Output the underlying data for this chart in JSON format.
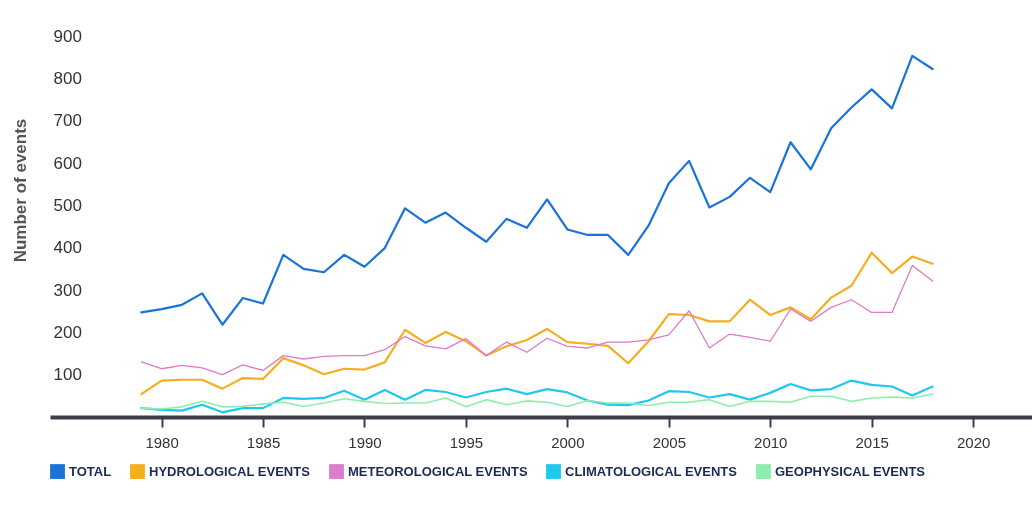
{
  "chart_data": {
    "type": "line",
    "ylabel": "Number of events",
    "x": [
      1979,
      1980,
      1981,
      1982,
      1983,
      1984,
      1985,
      1986,
      1987,
      1988,
      1989,
      1990,
      1991,
      1992,
      1993,
      1994,
      1995,
      1996,
      1997,
      1998,
      1999,
      2000,
      2001,
      2002,
      2003,
      2004,
      2005,
      2006,
      2007,
      2008,
      2009,
      2010,
      2011,
      2012,
      2013,
      2014,
      2015,
      2016,
      2017,
      2018
    ],
    "series": [
      {
        "name": "TOTAL",
        "color": "#1a73d9",
        "values": [
          247,
          255,
          265,
          292,
          218,
          281,
          268,
          383,
          350,
          342,
          383,
          355,
          399,
          493,
          459,
          483,
          447,
          414,
          468,
          447,
          514,
          443,
          430,
          430,
          383,
          452,
          552,
          605,
          495,
          520,
          565,
          531,
          649,
          585,
          682,
          731,
          774,
          729,
          853,
          822
        ]
      },
      {
        "name": "HYDROLOGICAL EVENTS",
        "color": "#f5ae1e",
        "values": [
          54,
          86,
          88,
          88,
          67,
          92,
          90,
          139,
          122,
          101,
          114,
          112,
          129,
          206,
          175,
          201,
          179,
          145,
          167,
          182,
          208,
          177,
          173,
          168,
          127,
          179,
          243,
          241,
          226,
          226,
          277,
          241,
          259,
          231,
          282,
          310,
          388,
          340,
          379,
          362
        ]
      },
      {
        "name": "METEOROLOGICAL EVENTS",
        "color": "#dc7ccb",
        "values": [
          130,
          114,
          122,
          116,
          100,
          123,
          110,
          145,
          137,
          143,
          145,
          145,
          159,
          190,
          168,
          161,
          185,
          145,
          177,
          153,
          186,
          167,
          163,
          177,
          177,
          182,
          194,
          251,
          163,
          196,
          188,
          179,
          255,
          226,
          259,
          277,
          247,
          247,
          358,
          321
        ]
      },
      {
        "name": "CLIMATOLOGICAL EVENTS",
        "color": "#1fc8ef",
        "values": [
          21,
          17,
          15,
          29,
          11,
          21,
          21,
          45,
          43,
          45,
          62,
          41,
          64,
          41,
          64,
          59,
          46,
          59,
          67,
          54,
          66,
          58,
          39,
          29,
          28,
          39,
          61,
          59,
          46,
          54,
          41,
          57,
          78,
          63,
          66,
          86,
          76,
          72,
          51,
          72
        ]
      },
      {
        "name": "GEOPHYSICAL EVENTS",
        "color": "#8eedb0",
        "values": [
          21,
          19,
          24,
          37,
          24,
          25,
          31,
          35,
          25,
          33,
          43,
          37,
          32,
          33,
          33,
          45,
          24,
          41,
          29,
          38,
          35,
          25,
          39,
          33,
          33,
          27,
          35,
          35,
          41,
          25,
          37,
          37,
          35,
          49,
          49,
          37,
          45,
          47,
          45,
          54
        ]
      }
    ],
    "xlim": [
      1974.5,
      2022.9
    ],
    "xticks": [
      1980,
      1985,
      1990,
      1995,
      2000,
      2005,
      2010,
      2015,
      2020
    ],
    "ylim": [
      0,
      900
    ],
    "yticks": [
      100,
      200,
      300,
      400,
      500,
      600,
      700,
      800,
      900
    ],
    "grid": false,
    "legend": "bottom left"
  }
}
